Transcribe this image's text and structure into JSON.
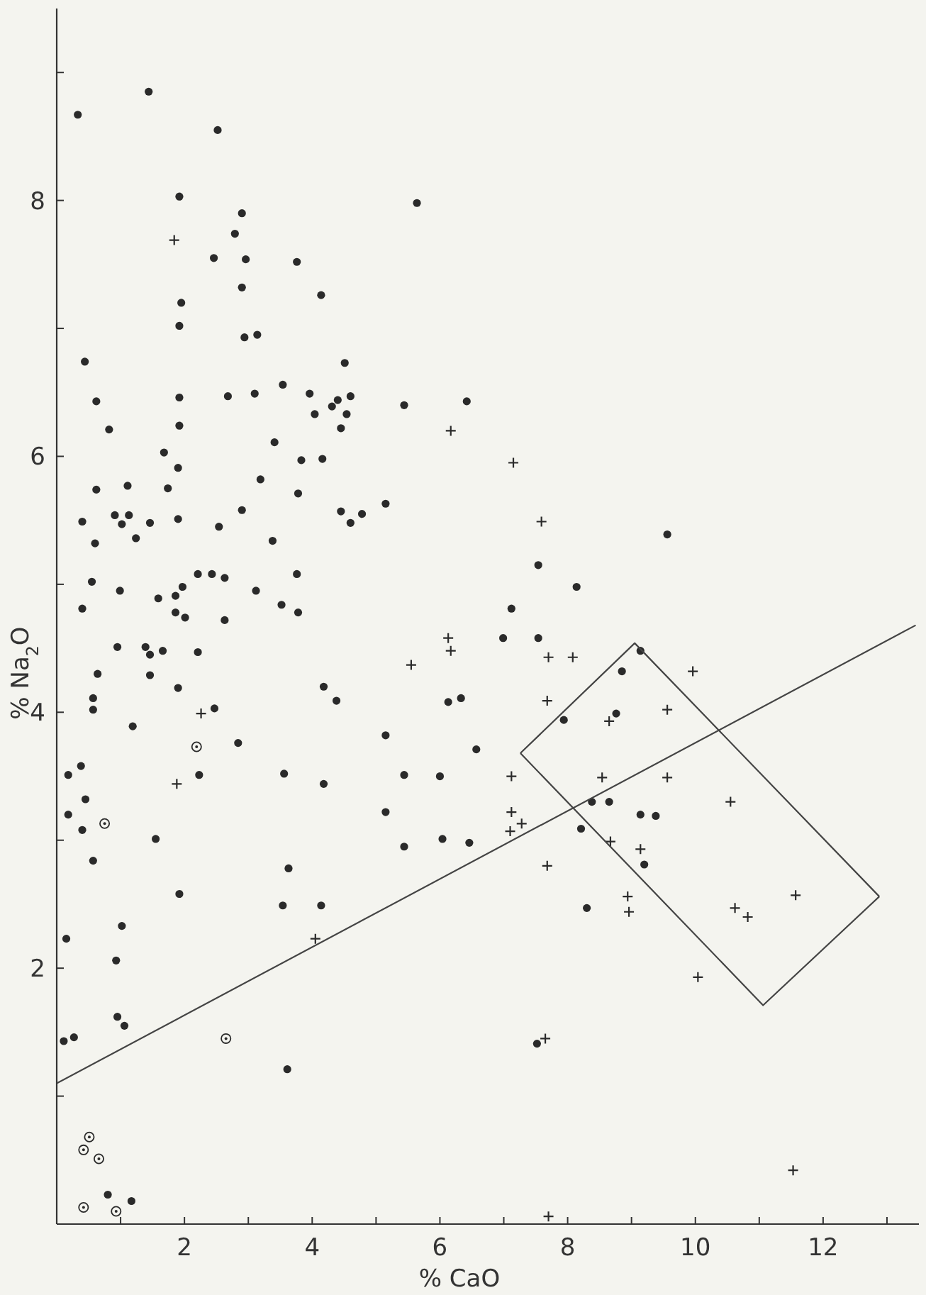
{
  "chart_data": {
    "type": "scatter",
    "xlabel": "% CaO",
    "ylabel": "% Na$_{2}$O",
    "xlim": [
      0,
      13.5
    ],
    "ylim": [
      0,
      9.5
    ],
    "xticks": [
      {
        "value": 1,
        "label": null
      },
      2,
      {
        "value": 3,
        "label": null
      },
      4,
      {
        "value": 5,
        "label": null
      },
      6,
      {
        "value": 7,
        "label": null
      },
      8,
      {
        "value": 9,
        "label": null
      },
      10,
      {
        "value": 11,
        "label": null
      },
      12,
      {
        "value": 13,
        "label": null
      }
    ],
    "yticks": [
      {
        "value": 1,
        "label": null
      },
      2,
      {
        "value": 3,
        "label": null
      },
      4,
      {
        "value": 5,
        "label": null
      },
      6,
      {
        "value": 7,
        "label": null
      },
      8,
      {
        "value": 9,
        "label": null
      }
    ],
    "grid": false,
    "series": [
      {
        "marker": "circle",
        "color": "#2a2a2a",
        "x": [
          0.33,
          1.44,
          2.52,
          1.92,
          5.64,
          2.9,
          2.79,
          2.46,
          2.96,
          3.76,
          2.9,
          1.95,
          4.14,
          1.92,
          2.94,
          3.14,
          0.44,
          4.51,
          0.62,
          1.92,
          2.68,
          3.1,
          3.54,
          3.96,
          4.04,
          4.31,
          4.4,
          4.6,
          4.54,
          4.45,
          5.44,
          6.42,
          0.82,
          1.92,
          3.41,
          1.68,
          1.9,
          4.16,
          3.83,
          1.11,
          0.62,
          1.74,
          3.19,
          3.78,
          0.4,
          0.91,
          1.13,
          1.02,
          1.46,
          1.9,
          2.9,
          2.54,
          4.45,
          4.6,
          4.78,
          5.15,
          0.6,
          1.24,
          3.38,
          0.55,
          0.99,
          2.21,
          2.43,
          2.63,
          1.97,
          3.12,
          3.76,
          0.4,
          1.59,
          1.86,
          1.86,
          2.01,
          2.63,
          3.52,
          3.78,
          0.95,
          1.39,
          1.46,
          1.66,
          2.21,
          0.64,
          1.46,
          1.9,
          0.57,
          0.57,
          2.47,
          1.19,
          2.84,
          0.18,
          0.38,
          2.23,
          0.45,
          0.18,
          0.4,
          1.55,
          0.57,
          1.92,
          1.02,
          0.15,
          0.93,
          0.95,
          1.06,
          0.11,
          0.27,
          0.8,
          1.17,
          3.56,
          4.18,
          5.15,
          5.44,
          6.0,
          5.15,
          5.44,
          6.04,
          3.63,
          3.54,
          4.14,
          3.61,
          4.18,
          4.38,
          6.13,
          6.33,
          9.56,
          7.54,
          8.14,
          7.12,
          6.99,
          7.54,
          9.14,
          8.85,
          7.94,
          8.76,
          6.57,
          8.38,
          8.65,
          9.14,
          9.38,
          6.46,
          8.21,
          9.2,
          8.3,
          7.52
        ],
        "values": [
          8.67,
          8.85,
          8.55,
          8.03,
          7.98,
          7.9,
          7.74,
          7.55,
          7.54,
          7.52,
          7.32,
          7.2,
          7.26,
          7.02,
          6.93,
          6.95,
          6.74,
          6.73,
          6.43,
          6.46,
          6.47,
          6.49,
          6.56,
          6.49,
          6.33,
          6.39,
          6.44,
          6.47,
          6.33,
          6.22,
          6.4,
          6.43,
          6.21,
          6.24,
          6.11,
          6.03,
          5.91,
          5.98,
          5.97,
          5.77,
          5.74,
          5.75,
          5.82,
          5.71,
          5.49,
          5.54,
          5.54,
          5.47,
          5.48,
          5.51,
          5.58,
          5.45,
          5.57,
          5.48,
          5.55,
          5.63,
          5.32,
          5.36,
          5.34,
          5.02,
          4.95,
          5.08,
          5.08,
          5.05,
          4.98,
          4.95,
          5.08,
          4.81,
          4.89,
          4.91,
          4.78,
          4.74,
          4.72,
          4.84,
          4.78,
          4.51,
          4.51,
          4.45,
          4.48,
          4.47,
          4.3,
          4.29,
          4.19,
          4.11,
          4.02,
          4.03,
          3.89,
          3.76,
          3.51,
          3.58,
          3.51,
          3.32,
          3.2,
          3.08,
          3.01,
          2.84,
          2.58,
          2.33,
          2.23,
          2.06,
          1.62,
          1.55,
          1.43,
          1.46,
          0.23,
          0.18,
          3.52,
          3.44,
          3.82,
          3.51,
          3.5,
          3.22,
          2.95,
          3.01,
          2.78,
          2.49,
          2.49,
          1.21,
          4.2,
          4.09,
          4.08,
          4.11,
          5.39,
          5.15,
          4.98,
          4.81,
          4.58,
          4.58,
          4.48,
          4.32,
          3.94,
          3.99,
          3.71,
          3.3,
          3.3,
          3.2,
          3.19,
          2.98,
          3.09,
          2.81,
          2.47,
          1.41
        ]
      },
      {
        "marker": "cross",
        "color": "#2a2a2a",
        "x": [
          1.84,
          6.17,
          2.26,
          1.88,
          4.05,
          5.55,
          6.13,
          6.17,
          7.15,
          7.59,
          7.7,
          8.08,
          9.96,
          7.68,
          8.65,
          9.56,
          7.12,
          8.54,
          9.56,
          10.55,
          7.12,
          7.28,
          7.1,
          8.67,
          9.14,
          7.68,
          8.94,
          8.96,
          10.62,
          10.82,
          11.57,
          10.04,
          7.65,
          11.53,
          7.7
        ],
        "values": [
          7.69,
          6.2,
          3.99,
          3.44,
          2.23,
          4.37,
          4.58,
          4.48,
          5.95,
          5.49,
          4.43,
          4.43,
          4.32,
          4.09,
          3.93,
          4.02,
          3.5,
          3.49,
          3.49,
          3.3,
          3.22,
          3.13,
          3.07,
          2.99,
          2.93,
          2.8,
          2.56,
          2.44,
          2.47,
          2.4,
          2.57,
          1.93,
          1.45,
          0.42,
          0.06
        ]
      },
      {
        "marker": "circle-dot",
        "color": "#2a2a2a",
        "x": [
          2.19,
          0.75,
          2.65,
          0.51,
          0.42,
          0.66,
          0.42,
          0.93
        ],
        "values": [
          3.73,
          3.13,
          1.45,
          0.68,
          0.58,
          0.51,
          0.13,
          0.1
        ]
      },
      {
        "type": "line",
        "marker": "none",
        "color": "#444444",
        "x": [
          0,
          13.45
        ],
        "values": [
          1.1,
          4.68
        ]
      },
      {
        "type": "line",
        "marker": "none",
        "color": "#444444",
        "x": [
          7.26,
          9.05,
          12.88
        ],
        "values": [
          3.68,
          4.54,
          2.56
        ]
      },
      {
        "type": "line",
        "marker": "none",
        "color": "#444444",
        "x": [
          7.26,
          11.06,
          12.88
        ],
        "values": [
          3.68,
          1.71,
          2.56
        ]
      }
    ]
  }
}
